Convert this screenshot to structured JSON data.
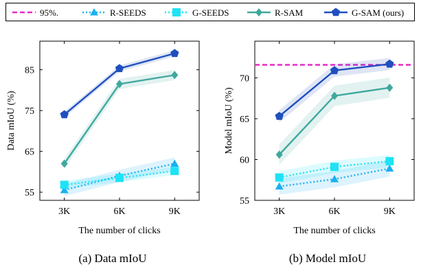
{
  "legend": {
    "items": [
      {
        "label": "95%.",
        "color": "#e62ac8",
        "style": "dashed",
        "marker": "none"
      },
      {
        "label": "R-SEEDS",
        "color": "#1ab0f0",
        "style": "dotted",
        "marker": "triangle"
      },
      {
        "label": "G-SEEDS",
        "color": "#1ee3f5",
        "style": "dotted",
        "marker": "square"
      },
      {
        "label": "R-SAM",
        "color": "#3fa89e",
        "style": "solid",
        "marker": "diamond"
      },
      {
        "label": "G-SAM (ours)",
        "color": "#1f4fbf",
        "style": "solid",
        "marker": "pentagon"
      }
    ]
  },
  "chart_data": [
    {
      "type": "line",
      "caption": "(a) Data mIoU",
      "xlabel": "The number of clicks",
      "ylabel": "Data mIoU (%)",
      "categories": [
        "3K",
        "6K",
        "9K"
      ],
      "ylim": [
        53,
        92
      ],
      "yticks": [
        55,
        65,
        75,
        85
      ],
      "grid": false,
      "series": [
        {
          "name": "R-SEEDS",
          "values": [
            55.5,
            59.0,
            62.0
          ],
          "band": 0.6
        },
        {
          "name": "G-SEEDS",
          "values": [
            56.8,
            58.5,
            60.2
          ],
          "band": 0.4
        },
        {
          "name": "R-SAM",
          "values": [
            62.0,
            81.5,
            83.7
          ],
          "band": 0.5
        },
        {
          "name": "G-SAM (ours)",
          "values": [
            74.0,
            85.3,
            89.0
          ],
          "band": 0.3
        }
      ]
    },
    {
      "type": "line",
      "caption": "(b) Model mIoU",
      "xlabel": "The number of clicks",
      "ylabel": "Model mIoU (%)",
      "categories": [
        "3K",
        "6K",
        "9K"
      ],
      "ylim": [
        55,
        74.5
      ],
      "yticks": [
        55,
        60,
        65,
        70
      ],
      "grid": false,
      "hline": {
        "name": "95%.",
        "value": 71.6
      },
      "series": [
        {
          "name": "R-SEEDS",
          "values": [
            56.7,
            57.6,
            58.9
          ],
          "band": 0.4
        },
        {
          "name": "G-SEEDS",
          "values": [
            57.8,
            59.1,
            59.8
          ],
          "band": 0.3
        },
        {
          "name": "R-SAM",
          "values": [
            60.6,
            67.8,
            68.8
          ],
          "band": 0.5
        },
        {
          "name": "G-SAM (ours)",
          "values": [
            65.3,
            70.9,
            71.7
          ],
          "band": 0.3
        }
      ]
    }
  ]
}
